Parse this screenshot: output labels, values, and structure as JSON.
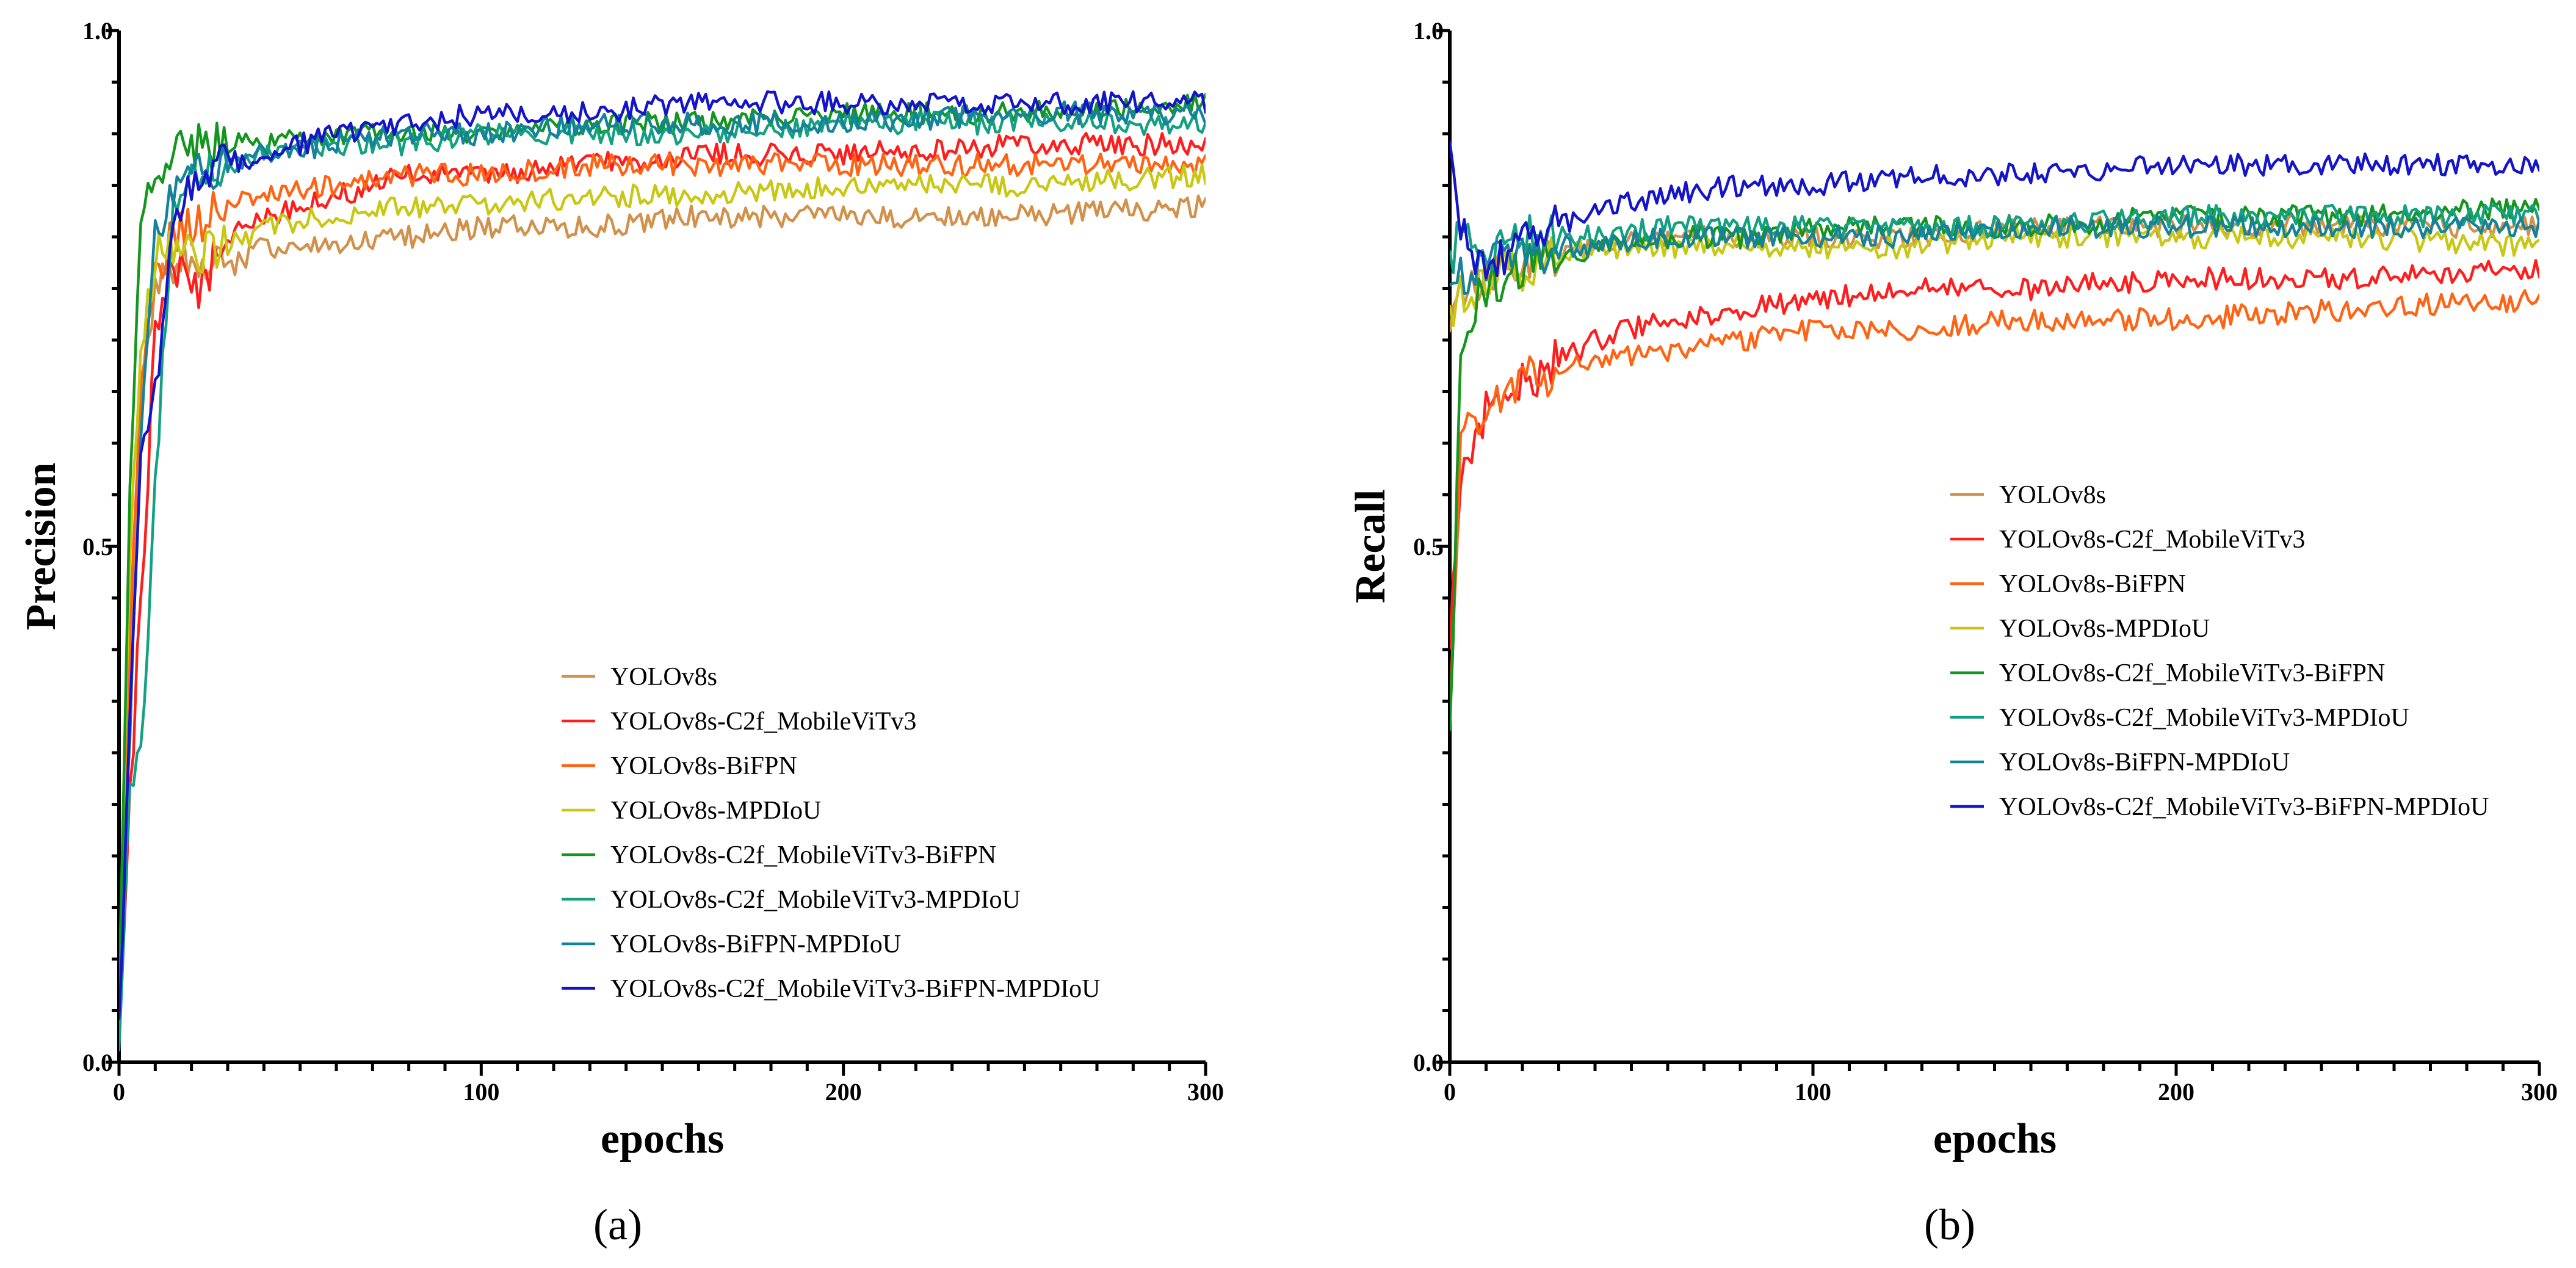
{
  "figure": {
    "panels": [
      "(a)",
      "(b)"
    ]
  },
  "series_colors": {
    "YOLOv8s": "#D2914B",
    "YOLOv8s-C2f_MobileViTv3": "#FF1E1E",
    "YOLOv8s-BiFPN": "#FF6414",
    "YOLOv8s-MPDIoU": "#C8C814",
    "YOLOv8s-C2f_MobileViTv3-BiFPN": "#14961E",
    "YOLOv8s-C2f_MobileViTv3-MPDIoU": "#14A082",
    "YOLOv8s-BiFPN-MPDIoU": "#14829B",
    "YOLOv8s-C2f_MobileViTv3-BiFPN-MPDIoU": "#1414C8"
  },
  "chart_data": [
    {
      "type": "line",
      "panel_label": "(a)",
      "title": "",
      "xlabel": "epochs",
      "ylabel": "Precision",
      "xlim": [
        0,
        300
      ],
      "ylim": [
        0.0,
        1.0
      ],
      "x_ticks": [
        "0",
        "100",
        "200",
        "300"
      ],
      "y_ticks": [
        "0.0",
        "0.5",
        "1.0"
      ],
      "legend_position": "center-right",
      "grid": false,
      "x": [
        0,
        3,
        6,
        10,
        15,
        20,
        30,
        40,
        60,
        80,
        100,
        130,
        160,
        200,
        250,
        300
      ],
      "series": [
        {
          "name": "YOLOv8s",
          "values": [
            0.03,
            0.38,
            0.62,
            0.74,
            0.77,
            0.78,
            0.77,
            0.79,
            0.79,
            0.8,
            0.81,
            0.81,
            0.82,
            0.82,
            0.82,
            0.83
          ]
        },
        {
          "name": "YOLOv8s-C2f_MobileViTv3",
          "values": [
            0.02,
            0.25,
            0.45,
            0.7,
            0.78,
            0.74,
            0.8,
            0.82,
            0.84,
            0.86,
            0.86,
            0.87,
            0.88,
            0.88,
            0.89,
            0.89
          ]
        },
        {
          "name": "YOLOv8s-BiFPN",
          "values": [
            0.05,
            0.42,
            0.65,
            0.76,
            0.8,
            0.81,
            0.83,
            0.84,
            0.85,
            0.86,
            0.86,
            0.87,
            0.87,
            0.87,
            0.87,
            0.87
          ]
        },
        {
          "name": "YOLOv8s-MPDIoU",
          "values": [
            0.04,
            0.5,
            0.7,
            0.78,
            0.79,
            0.78,
            0.79,
            0.81,
            0.82,
            0.83,
            0.83,
            0.84,
            0.84,
            0.85,
            0.85,
            0.86
          ]
        },
        {
          "name": "YOLOv8s-C2f_MobileViTv3-BiFPN",
          "values": [
            0.05,
            0.55,
            0.82,
            0.87,
            0.88,
            0.89,
            0.89,
            0.89,
            0.9,
            0.9,
            0.9,
            0.91,
            0.91,
            0.92,
            0.92,
            0.93
          ]
        },
        {
          "name": "YOLOv8s-C2f_MobileViTv3-MPDIoU",
          "values": [
            0.03,
            0.28,
            0.29,
            0.55,
            0.84,
            0.86,
            0.87,
            0.88,
            0.89,
            0.89,
            0.9,
            0.9,
            0.9,
            0.91,
            0.91,
            0.91
          ]
        },
        {
          "name": "YOLOv8s-BiFPN-MPDIoU",
          "values": [
            0.04,
            0.33,
            0.62,
            0.8,
            0.84,
            0.86,
            0.87,
            0.88,
            0.89,
            0.9,
            0.9,
            0.91,
            0.91,
            0.91,
            0.92,
            0.92
          ]
        },
        {
          "name": "YOLOv8s-C2f_MobileViTv3-BiFPN-MPDIoU",
          "values": [
            0.05,
            0.32,
            0.58,
            0.65,
            0.8,
            0.85,
            0.87,
            0.88,
            0.9,
            0.91,
            0.92,
            0.92,
            0.93,
            0.93,
            0.93,
            0.93
          ]
        }
      ]
    },
    {
      "type": "line",
      "panel_label": "(b)",
      "title": "",
      "xlabel": "epochs",
      "ylabel": "Recall",
      "xlim": [
        0,
        300
      ],
      "ylim": [
        0.0,
        1.0
      ],
      "x_ticks": [
        "0",
        "100",
        "200",
        "300"
      ],
      "y_ticks": [
        "0.0",
        "0.5",
        "1.0"
      ],
      "legend_position": "upper-right",
      "grid": false,
      "x": [
        0,
        3,
        6,
        10,
        15,
        20,
        30,
        40,
        60,
        80,
        100,
        130,
        160,
        200,
        250,
        300
      ],
      "series": [
        {
          "name": "YOLOv8s",
          "values": [
            0.7,
            0.74,
            0.75,
            0.76,
            0.77,
            0.78,
            0.78,
            0.79,
            0.8,
            0.8,
            0.8,
            0.8,
            0.81,
            0.81,
            0.81,
            0.81
          ]
        },
        {
          "name": "YOLOv8s-C2f_MobileViTv3",
          "values": [
            0.4,
            0.56,
            0.6,
            0.63,
            0.65,
            0.66,
            0.68,
            0.7,
            0.72,
            0.73,
            0.74,
            0.75,
            0.75,
            0.76,
            0.76,
            0.77
          ]
        },
        {
          "name": "YOLOv8s-BiFPN",
          "values": [
            0.35,
            0.6,
            0.62,
            0.64,
            0.65,
            0.66,
            0.67,
            0.68,
            0.69,
            0.7,
            0.71,
            0.71,
            0.72,
            0.72,
            0.73,
            0.74
          ]
        },
        {
          "name": "YOLOv8s-MPDIoU",
          "values": [
            0.72,
            0.74,
            0.75,
            0.76,
            0.77,
            0.77,
            0.78,
            0.79,
            0.79,
            0.79,
            0.79,
            0.79,
            0.8,
            0.8,
            0.8,
            0.79
          ]
        },
        {
          "name": "YOLOv8s-C2f_MobileViTv3-BiFPN",
          "values": [
            0.3,
            0.7,
            0.73,
            0.75,
            0.76,
            0.77,
            0.78,
            0.79,
            0.8,
            0.8,
            0.81,
            0.81,
            0.81,
            0.82,
            0.82,
            0.83
          ]
        },
        {
          "name": "YOLOv8s-C2f_MobileViTv3-MPDIoU",
          "values": [
            0.78,
            0.8,
            0.79,
            0.79,
            0.79,
            0.8,
            0.8,
            0.8,
            0.81,
            0.81,
            0.81,
            0.81,
            0.81,
            0.82,
            0.82,
            0.82
          ]
        },
        {
          "name": "YOLOv8s-BiFPN-MPDIoU",
          "values": [
            0.74,
            0.76,
            0.77,
            0.77,
            0.78,
            0.78,
            0.79,
            0.79,
            0.8,
            0.8,
            0.8,
            0.8,
            0.81,
            0.81,
            0.81,
            0.81
          ]
        },
        {
          "name": "YOLOv8s-C2f_MobileViTv3-BiFPN-MPDIoU",
          "values": [
            0.9,
            0.82,
            0.79,
            0.77,
            0.78,
            0.79,
            0.81,
            0.83,
            0.84,
            0.85,
            0.85,
            0.86,
            0.86,
            0.87,
            0.87,
            0.87
          ]
        }
      ]
    }
  ]
}
